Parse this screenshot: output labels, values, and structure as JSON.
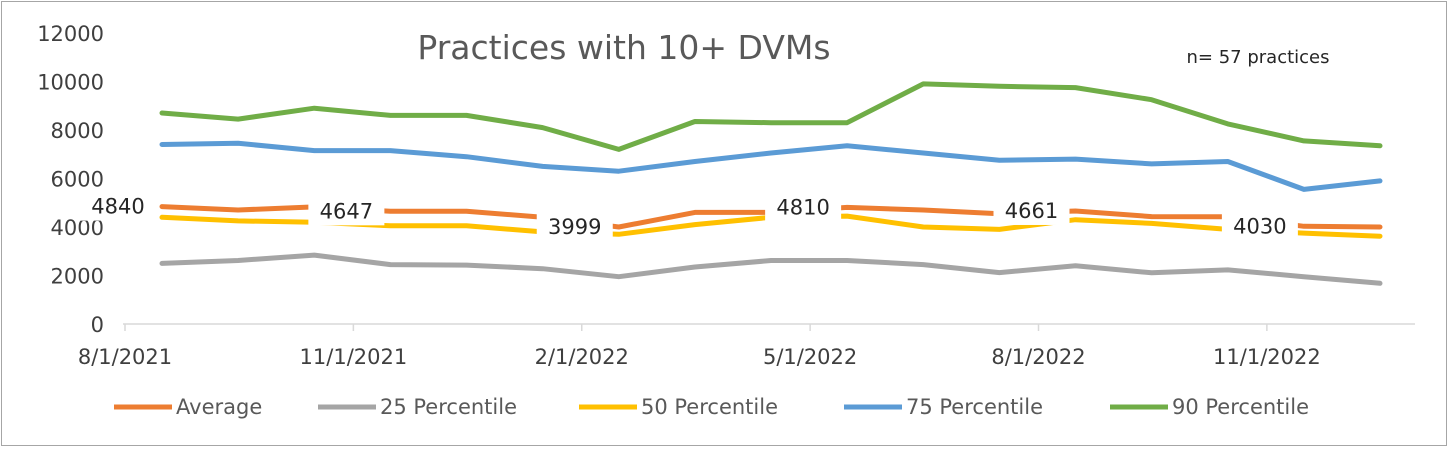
{
  "chart_data": {
    "type": "line",
    "title": "Practices with 10+ DVMs",
    "annotation": "n= 57 practices",
    "xlabel": "",
    "ylabel": "",
    "ylim": [
      0,
      12000
    ],
    "yticks": [
      "0",
      "2000",
      "4000",
      "6000",
      "8000",
      "10000",
      "12000"
    ],
    "x": [
      "8/1/2021",
      "9/1/2021",
      "10/1/2021",
      "11/1/2021",
      "12/1/2021",
      "1/1/2022",
      "2/1/2022",
      "3/1/2022",
      "4/1/2022",
      "5/1/2022",
      "6/1/2022",
      "7/1/2022",
      "8/1/2022",
      "9/1/2022",
      "10/1/2022",
      "11/1/2022",
      "12/1/2022"
    ],
    "xtick_labels": [
      "8/1/2021",
      "11/1/2021",
      "2/1/2022",
      "5/1/2022",
      "8/1/2022",
      "11/1/2022"
    ],
    "xtick_index": [
      0,
      3,
      6,
      9,
      12,
      15
    ],
    "series": [
      {
        "name": "Average",
        "color": "#ED7D31",
        "values": [
          4840,
          4700,
          4830,
          4647,
          4650,
          4400,
          3999,
          4600,
          4600,
          4810,
          4700,
          4550,
          4661,
          4430,
          4420,
          4030,
          4000
        ]
      },
      {
        "name": "25 Percentile",
        "color": "#A5A5A5",
        "values": [
          2500,
          2620,
          2840,
          2450,
          2430,
          2280,
          1950,
          2350,
          2620,
          2620,
          2450,
          2120,
          2400,
          2110,
          2230,
          1950,
          1680
        ]
      },
      {
        "name": "50 Percentile",
        "color": "#FFC000",
        "values": [
          4400,
          4250,
          4200,
          4050,
          4050,
          3800,
          3700,
          4100,
          4400,
          4450,
          4000,
          3900,
          4300,
          4150,
          3900,
          3750,
          3620
        ]
      },
      {
        "name": "75 Percentile",
        "color": "#5B9BD5",
        "values": [
          7400,
          7450,
          7150,
          7150,
          6900,
          6500,
          6300,
          6700,
          7050,
          7350,
          7050,
          6750,
          6800,
          6600,
          6700,
          5550,
          5900
        ]
      },
      {
        "name": "90 Percentile",
        "color": "#70AD47",
        "values": [
          8700,
          8450,
          8900,
          8600,
          8600,
          8100,
          7200,
          8350,
          8300,
          8300,
          9900,
          9800,
          9750,
          9250,
          8250,
          7550,
          7350
        ]
      }
    ],
    "data_labels": [
      {
        "series": "Average",
        "index": 0,
        "text": "4840"
      },
      {
        "series": "Average",
        "index": 3,
        "text": "4647"
      },
      {
        "series": "Average",
        "index": 6,
        "text": "3999"
      },
      {
        "series": "Average",
        "index": 9,
        "text": "4810"
      },
      {
        "series": "Average",
        "index": 12,
        "text": "4661"
      },
      {
        "series": "Average",
        "index": 15,
        "text": "4030"
      }
    ],
    "legend": [
      "Average",
      "25 Percentile",
      "50 Percentile",
      "75 Percentile",
      "90 Percentile"
    ],
    "legend_position": "bottom",
    "grid": false
  }
}
